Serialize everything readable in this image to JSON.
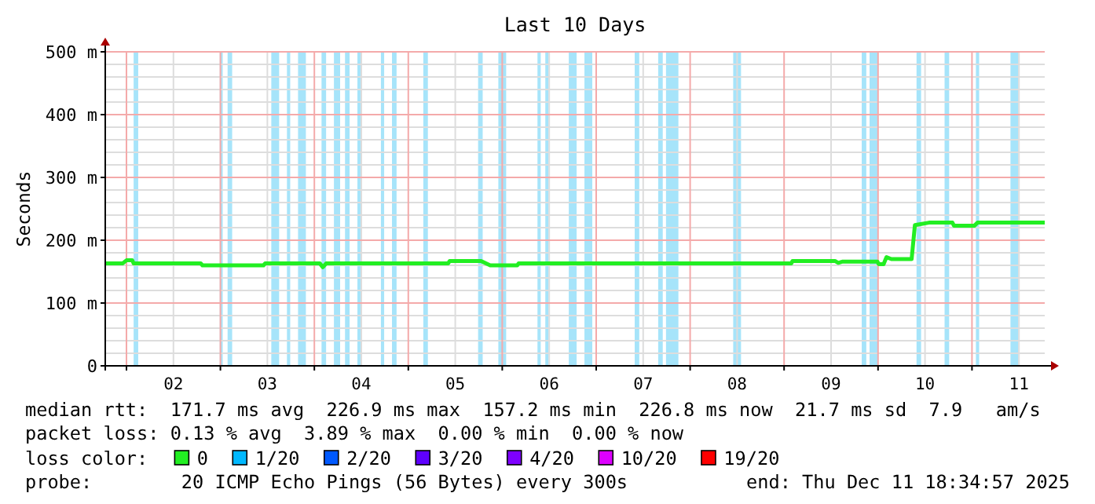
{
  "chart_data": {
    "type": "line",
    "title": "Last 10 Days",
    "ylabel": "Seconds",
    "xlim": [
      "2025-12-01T18:35",
      "2025-12-11T18:35"
    ],
    "xticks": [
      {
        "value": "2025-12-02T00:00",
        "label": null
      },
      {
        "value": "2025-12-02T12:00",
        "label": "02"
      },
      {
        "value": "2025-12-03T00:00",
        "label": null
      },
      {
        "value": "2025-12-03T12:00",
        "label": "03"
      },
      {
        "value": "2025-12-04T00:00",
        "label": null
      },
      {
        "value": "2025-12-04T12:00",
        "label": "04"
      },
      {
        "value": "2025-12-05T00:00",
        "label": null
      },
      {
        "value": "2025-12-05T12:00",
        "label": "05"
      },
      {
        "value": "2025-12-06T00:00",
        "label": null
      },
      {
        "value": "2025-12-06T12:00",
        "label": "06"
      },
      {
        "value": "2025-12-07T00:00",
        "label": null
      },
      {
        "value": "2025-12-07T12:00",
        "label": "07"
      },
      {
        "value": "2025-12-08T00:00",
        "label": null
      },
      {
        "value": "2025-12-08T12:00",
        "label": "08"
      },
      {
        "value": "2025-12-09T00:00",
        "label": null
      },
      {
        "value": "2025-12-09T12:00",
        "label": "09"
      },
      {
        "value": "2025-12-10T00:00",
        "label": null
      },
      {
        "value": "2025-12-10T12:00",
        "label": "10"
      },
      {
        "value": "2025-12-11T00:00",
        "label": null
      },
      {
        "value": "2025-12-11T12:00",
        "label": "11"
      }
    ],
    "ylim": [
      0,
      500
    ],
    "yticks": [
      0,
      {
        "value": 100,
        "label": "100 m"
      },
      {
        "value": 200,
        "label": "200 m"
      },
      {
        "value": 300,
        "label": "300 m"
      },
      {
        "value": 400,
        "label": "400 m"
      },
      {
        "value": 500,
        "label": "500 m"
      }
    ],
    "grid": true,
    "marker": "none",
    "line_style": "solid",
    "legend": "bottom",
    "legend_title": "loss color:",
    "series": [
      {
        "name": "0",
        "color": "#22ee22",
        "x": [
          "2025-12-01T18:35",
          "2025-12-01T23:00",
          "2025-12-02T00:00",
          "2025-12-02T01:30",
          "2025-12-02T01:50",
          "2025-12-02T19:00",
          "2025-12-02T19:25",
          "2025-12-03T11:00",
          "2025-12-03T11:25",
          "2025-12-04T01:25",
          "2025-12-04T02:10",
          "2025-12-04T03:00",
          "2025-12-05T10:10",
          "2025-12-05T10:35",
          "2025-12-05T18:35",
          "2025-12-05T20:55",
          "2025-12-06T03:50",
          "2025-12-06T04:10",
          "2025-12-09T01:50",
          "2025-12-09T02:10",
          "2025-12-09T13:00",
          "2025-12-09T13:50",
          "2025-12-09T15:00",
          "2025-12-09T23:50",
          "2025-12-10T00:10",
          "2025-12-10T01:25",
          "2025-12-10T02:10",
          "2025-12-10T03:25",
          "2025-12-10T08:35",
          "2025-12-10T09:25",
          "2025-12-10T13:00",
          "2025-12-10T19:00",
          "2025-12-10T19:25",
          "2025-12-11T00:35",
          "2025-12-11T01:25",
          "2025-12-11T18:35"
        ],
        "values": [
          163,
          163,
          168,
          168,
          163,
          163,
          160,
          160,
          163,
          163,
          157,
          163,
          163,
          167,
          167,
          160,
          160,
          163,
          163,
          167,
          167,
          164,
          166,
          166,
          162,
          162,
          173,
          170,
          170,
          224,
          228,
          228,
          223,
          223,
          228,
          228
        ]
      },
      {
        "name": "1/20",
        "color": "#00b8ff"
      },
      {
        "name": "2/20",
        "color": "#0059ff"
      },
      {
        "name": "3/20",
        "color": "#5e00ff"
      },
      {
        "name": "4/20",
        "color": "#7e00ff"
      },
      {
        "name": "10/20",
        "color": "#dd00ff"
      },
      {
        "name": "19/20",
        "color": "#ff0000"
      }
    ],
    "bands": [
      {
        "axis": "x",
        "from": "2025-12-02T01:50",
        "to": "2025-12-02T03:00",
        "color": "#a6e4fa"
      },
      {
        "axis": "x",
        "from": "2025-12-02T23:50",
        "to": "2025-12-03T00:35",
        "color": "#a6e4fa"
      },
      {
        "axis": "x",
        "from": "2025-12-03T01:50",
        "to": "2025-12-03T03:00",
        "color": "#a6e4fa"
      },
      {
        "axis": "x",
        "from": "2025-12-03T13:00",
        "to": "2025-12-03T15:00",
        "color": "#a6e4fa"
      },
      {
        "axis": "x",
        "from": "2025-12-03T17:00",
        "to": "2025-12-03T17:50",
        "color": "#a6e4fa"
      },
      {
        "axis": "x",
        "from": "2025-12-03T19:50",
        "to": "2025-12-03T21:50",
        "color": "#a6e4fa"
      },
      {
        "axis": "x",
        "from": "2025-12-04T01:50",
        "to": "2025-12-04T03:00",
        "color": "#a6e4fa"
      },
      {
        "axis": "x",
        "from": "2025-12-04T05:00",
        "to": "2025-12-04T06:35",
        "color": "#a6e4fa"
      },
      {
        "axis": "x",
        "from": "2025-12-04T07:50",
        "to": "2025-12-04T09:00",
        "color": "#a6e4fa"
      },
      {
        "axis": "x",
        "from": "2025-12-04T11:00",
        "to": "2025-12-04T11:50",
        "color": "#a6e4fa"
      },
      {
        "axis": "x",
        "from": "2025-12-04T17:00",
        "to": "2025-12-04T17:50",
        "color": "#a6e4fa"
      },
      {
        "axis": "x",
        "from": "2025-12-04T19:50",
        "to": "2025-12-04T21:00",
        "color": "#a6e4fa"
      },
      {
        "axis": "x",
        "from": "2025-12-05T03:50",
        "to": "2025-12-05T05:00",
        "color": "#a6e4fa"
      },
      {
        "axis": "x",
        "from": "2025-12-05T17:50",
        "to": "2025-12-05T19:00",
        "color": "#a6e4fa"
      },
      {
        "axis": "x",
        "from": "2025-12-05T23:00",
        "to": "2025-12-06T01:00",
        "color": "#a6e4fa"
      },
      {
        "axis": "x",
        "from": "2025-12-06T09:00",
        "to": "2025-12-06T09:50",
        "color": "#a6e4fa"
      },
      {
        "axis": "x",
        "from": "2025-12-06T11:00",
        "to": "2025-12-06T11:50",
        "color": "#a6e4fa"
      },
      {
        "axis": "x",
        "from": "2025-12-06T17:00",
        "to": "2025-12-06T19:00",
        "color": "#a6e4fa"
      },
      {
        "axis": "x",
        "from": "2025-12-06T21:00",
        "to": "2025-12-06T23:00",
        "color": "#a6e4fa"
      },
      {
        "axis": "x",
        "from": "2025-12-07T09:50",
        "to": "2025-12-07T11:00",
        "color": "#a6e4fa"
      },
      {
        "axis": "x",
        "from": "2025-12-07T15:50",
        "to": "2025-12-07T17:00",
        "color": "#a6e4fa"
      },
      {
        "axis": "x",
        "from": "2025-12-07T17:50",
        "to": "2025-12-07T21:00",
        "color": "#a6e4fa"
      },
      {
        "axis": "x",
        "from": "2025-12-08T11:00",
        "to": "2025-12-08T13:00",
        "color": "#a6e4fa"
      },
      {
        "axis": "x",
        "from": "2025-12-09T19:50",
        "to": "2025-12-09T21:00",
        "color": "#a6e4fa"
      },
      {
        "axis": "x",
        "from": "2025-12-09T21:50",
        "to": "2025-12-09T23:50",
        "color": "#a6e4fa"
      },
      {
        "axis": "x",
        "from": "2025-12-10T09:50",
        "to": "2025-12-10T11:00",
        "color": "#a6e4fa"
      },
      {
        "axis": "x",
        "from": "2025-12-10T17:00",
        "to": "2025-12-10T18:10",
        "color": "#a6e4fa"
      },
      {
        "axis": "x",
        "from": "2025-12-11T01:00",
        "to": "2025-12-11T01:50",
        "color": "#a6e4fa"
      },
      {
        "axis": "x",
        "from": "2025-12-11T09:50",
        "to": "2025-12-11T11:50",
        "color": "#a6e4fa"
      }
    ],
    "annotations": [
      "median rtt:  171.7 ms avg  226.9 ms max  157.2 ms min  226.8 ms now  21.7 ms sd  7.9   am/s",
      "packet loss: 0.13 % avg  3.89 % max  0.00 % min  0.00 % now",
      "probe:        20 ICMP Echo Pings (56 Bytes) every 300s",
      "end: Thu Dec 11 18:34:57 2025"
    ]
  }
}
